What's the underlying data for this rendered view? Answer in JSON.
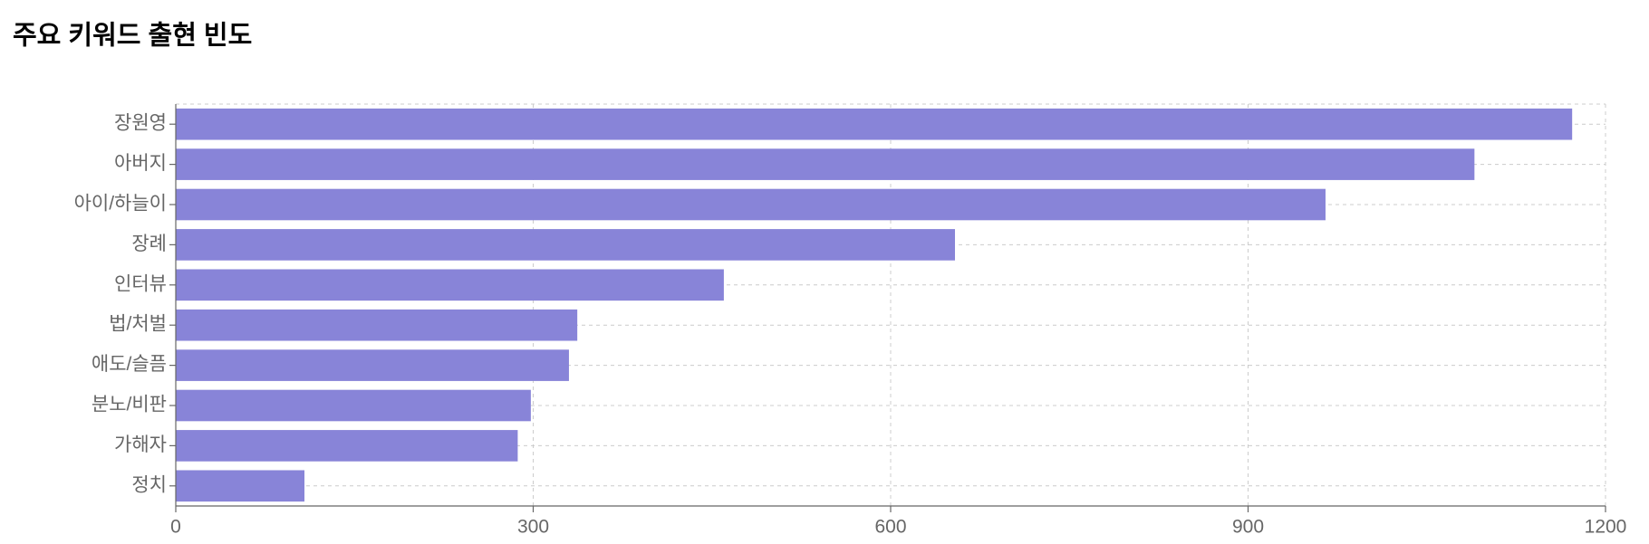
{
  "chart_data": {
    "type": "hbar",
    "title": "주요 키워드 출현 빈도",
    "categories": [
      "장원영",
      "아버지",
      "아이/하늘이",
      "장례",
      "인터뷰",
      "법/처벌",
      "애도/슬픔",
      "분노/비판",
      "가해자",
      "정치"
    ],
    "values": [
      1172,
      1090,
      965,
      654,
      460,
      337,
      330,
      298,
      287,
      108
    ],
    "color": "#8884d8",
    "xlim": [
      0,
      1200
    ],
    "xticks": [
      0,
      300,
      600,
      900,
      1200
    ],
    "grid": true
  }
}
